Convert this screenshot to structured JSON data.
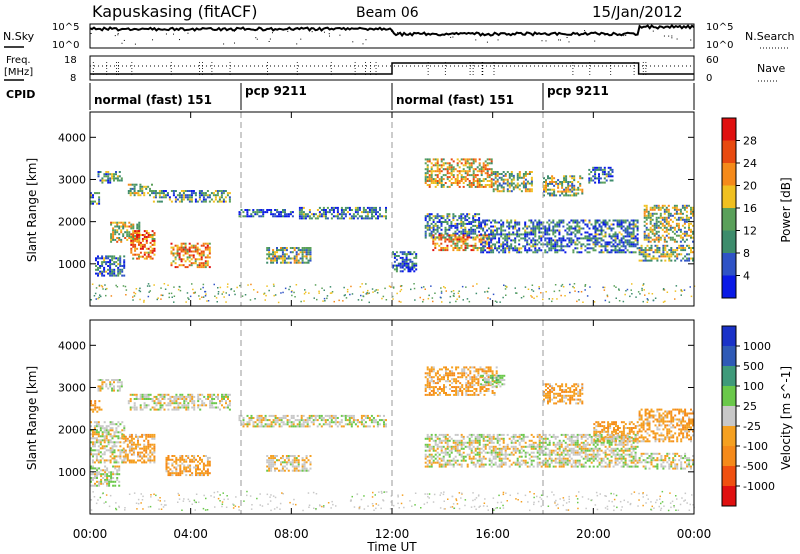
{
  "header": {
    "station": "Kapuskasing (fitACF)",
    "beam": "Beam 06",
    "date": "15/Jan/2012"
  },
  "noise_panel": {
    "left_label": "N.Sky",
    "right_label": "N.Search",
    "left_ticks": [
      "10^5",
      "10^0"
    ],
    "right_ticks": [
      "10^5",
      "10^0"
    ]
  },
  "freq_panel": {
    "left_label_1": "Freq.",
    "left_label_2": "[MHz]",
    "right_label": "Nave",
    "left_ticks": [
      "18",
      "8"
    ],
    "right_ticks": [
      "60",
      "0"
    ]
  },
  "cpid_panel": {
    "label": "CPID",
    "segments": [
      {
        "label": "normal (fast) 151",
        "start_hour": 0
      },
      {
        "label": "pcp 9211",
        "start_hour": 6
      },
      {
        "label": "normal (fast) 151",
        "start_hour": 12
      },
      {
        "label": "pcp 9211",
        "start_hour": 18
      }
    ]
  },
  "x_axis": {
    "label": "Time UT",
    "ticks": [
      "00:00",
      "04:00",
      "08:00",
      "12:00",
      "16:00",
      "20:00",
      "00:00"
    ]
  },
  "colors": {
    "power": [
      "#0a1ae6",
      "#2f53c6",
      "#3d8c6c",
      "#5aa05a",
      "#f0c020",
      "#f58a1a",
      "#e84a10",
      "#e01010"
    ],
    "velocity": [
      "#e01010",
      "#f05010",
      "#f58a1a",
      "#f5a020",
      "#c8c8c8",
      "#6ac84a",
      "#3f9a7a",
      "#2f5ab6",
      "#1a32c8"
    ]
  },
  "chart_data": [
    {
      "type": "heatmap",
      "title": "Power",
      "xlabel": "Time UT",
      "ylabel": "Slant Range [km]",
      "xlim": [
        0,
        24
      ],
      "ylim": [
        0,
        4600
      ],
      "y_ticks": [
        1000,
        2000,
        3000,
        4000
      ],
      "colorbar": {
        "label": "Power [dB]",
        "ticks": [
          "28",
          "24",
          "20",
          "16",
          "12",
          "8",
          "4"
        ],
        "range": [
          0,
          30
        ]
      },
      "echo_regions": [
        {
          "t_start": 0.0,
          "t_end": 0.4,
          "r_min": 2400,
          "r_max": 2700,
          "level": 8
        },
        {
          "t_start": 0.3,
          "t_end": 1.3,
          "r_min": 2900,
          "r_max": 3200,
          "level": 10
        },
        {
          "t_start": 1.5,
          "t_end": 2.5,
          "r_min": 2600,
          "r_max": 2900,
          "level": 12
        },
        {
          "t_start": 2.5,
          "t_end": 5.6,
          "r_min": 2450,
          "r_max": 2750,
          "level": 10
        },
        {
          "t_start": 0.8,
          "t_end": 2.0,
          "r_min": 1500,
          "r_max": 2000,
          "level": 16
        },
        {
          "t_start": 1.6,
          "t_end": 2.6,
          "r_min": 1100,
          "r_max": 1800,
          "level": 22
        },
        {
          "t_start": 0.2,
          "t_end": 1.4,
          "r_min": 700,
          "r_max": 1200,
          "level": 8
        },
        {
          "t_start": 3.2,
          "t_end": 4.8,
          "r_min": 900,
          "r_max": 1500,
          "level": 20
        },
        {
          "t_start": 5.9,
          "t_end": 8.1,
          "r_min": 2100,
          "r_max": 2300,
          "level": 6
        },
        {
          "t_start": 8.3,
          "t_end": 11.8,
          "r_min": 2050,
          "r_max": 2350,
          "level": 8
        },
        {
          "t_start": 7.0,
          "t_end": 8.8,
          "r_min": 1000,
          "r_max": 1400,
          "level": 12
        },
        {
          "t_start": 13.3,
          "t_end": 16.0,
          "r_min": 2800,
          "r_max": 3500,
          "level": 18
        },
        {
          "t_start": 16.0,
          "t_end": 17.6,
          "r_min": 2700,
          "r_max": 3200,
          "level": 14
        },
        {
          "t_start": 18.0,
          "t_end": 19.6,
          "r_min": 2600,
          "r_max": 3100,
          "level": 14
        },
        {
          "t_start": 19.8,
          "t_end": 20.8,
          "r_min": 2900,
          "r_max": 3300,
          "level": 8
        },
        {
          "t_start": 13.3,
          "t_end": 15.5,
          "r_min": 1600,
          "r_max": 2200,
          "level": 8
        },
        {
          "t_start": 13.6,
          "t_end": 16.0,
          "r_min": 1300,
          "r_max": 1700,
          "level": 20
        },
        {
          "t_start": 15.5,
          "t_end": 21.8,
          "r_min": 1250,
          "r_max": 2050,
          "level": 8
        },
        {
          "t_start": 21.8,
          "t_end": 24.0,
          "r_min": 1050,
          "r_max": 1450,
          "level": 12
        },
        {
          "t_start": 22.0,
          "t_end": 24.0,
          "r_min": 1500,
          "r_max": 2400,
          "level": 14
        },
        {
          "t_start": 12.0,
          "t_end": 13.0,
          "r_min": 800,
          "r_max": 1300,
          "level": 6
        }
      ]
    },
    {
      "type": "heatmap",
      "title": "Velocity",
      "xlabel": "Time UT",
      "ylabel": "Slant Range [km]",
      "xlim": [
        0,
        24
      ],
      "ylim": [
        0,
        4600
      ],
      "y_ticks": [
        1000,
        2000,
        3000,
        4000
      ],
      "colorbar": {
        "label": "Velocity [m s^-1]",
        "ticks": [
          "1000",
          "500",
          "100",
          "25",
          "-25",
          "-100",
          "-500",
          "-1000"
        ],
        "range": [
          -1200,
          1200
        ]
      },
      "echo_regions": [
        {
          "t_start": 0.0,
          "t_end": 0.5,
          "r_min": 2400,
          "r_max": 2700,
          "velocity": -300
        },
        {
          "t_start": 0.3,
          "t_end": 1.3,
          "r_min": 2900,
          "r_max": 3200,
          "velocity": 0
        },
        {
          "t_start": 1.5,
          "t_end": 5.6,
          "r_min": 2450,
          "r_max": 2850,
          "velocity": 0
        },
        {
          "t_start": 0.0,
          "t_end": 1.4,
          "r_min": 1200,
          "r_max": 2200,
          "velocity": 0
        },
        {
          "t_start": 0.0,
          "t_end": 1.2,
          "r_min": 650,
          "r_max": 1150,
          "velocity": 60
        },
        {
          "t_start": 1.3,
          "t_end": 2.6,
          "r_min": 1200,
          "r_max": 1900,
          "velocity": -300
        },
        {
          "t_start": 3.0,
          "t_end": 4.8,
          "r_min": 900,
          "r_max": 1400,
          "velocity": -300
        },
        {
          "t_start": 5.9,
          "t_end": 11.8,
          "r_min": 2050,
          "r_max": 2350,
          "velocity": 0
        },
        {
          "t_start": 7.0,
          "t_end": 8.8,
          "r_min": 1000,
          "r_max": 1400,
          "velocity": -60
        },
        {
          "t_start": 13.3,
          "t_end": 16.2,
          "r_min": 2800,
          "r_max": 3500,
          "velocity": -300
        },
        {
          "t_start": 15.5,
          "t_end": 16.5,
          "r_min": 3000,
          "r_max": 3300,
          "velocity": 200
        },
        {
          "t_start": 18.0,
          "t_end": 19.6,
          "r_min": 2600,
          "r_max": 3100,
          "velocity": -300
        },
        {
          "t_start": 20.0,
          "t_end": 21.8,
          "r_min": 1700,
          "r_max": 2200,
          "velocity": -300
        },
        {
          "t_start": 21.8,
          "t_end": 24.0,
          "r_min": 1700,
          "r_max": 2500,
          "velocity": -300
        },
        {
          "t_start": 13.3,
          "t_end": 21.8,
          "r_min": 1100,
          "r_max": 1900,
          "velocity": 0
        },
        {
          "t_start": 21.8,
          "t_end": 24.0,
          "r_min": 1050,
          "r_max": 1450,
          "velocity": 0
        }
      ]
    }
  ]
}
